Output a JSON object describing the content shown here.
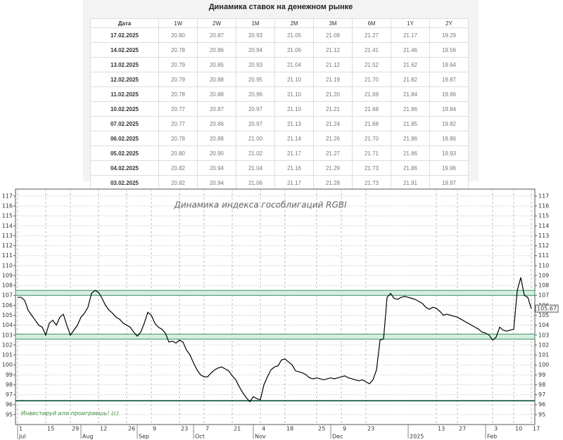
{
  "table": {
    "title": "Динамика ставок на денежном рынке",
    "header": [
      "Дата",
      "1W",
      "2W",
      "1M",
      "2M",
      "3M",
      "6M",
      "1Y",
      "2Y"
    ],
    "rows": [
      [
        "17.02.2025",
        "20.80",
        "20.87",
        "20.93",
        "21.05",
        "21.08",
        "21.27",
        "21.17",
        "19.29"
      ],
      [
        "14.02.2025",
        "20.78",
        "20.86",
        "20.94",
        "21.06",
        "21.12",
        "21.41",
        "21.46",
        "19.56"
      ],
      [
        "13.02.2025",
        "20.79",
        "20.85",
        "20.93",
        "21.04",
        "21.12",
        "21.52",
        "21.62",
        "19.64"
      ],
      [
        "12.02.2025",
        "20.79",
        "20.88",
        "20.95",
        "21.10",
        "21.19",
        "21.70",
        "21.82",
        "19.87"
      ],
      [
        "11.02.2025",
        "20.78",
        "20.88",
        "20.96",
        "21.10",
        "21.20",
        "21.69",
        "21.84",
        "19.86"
      ],
      [
        "10.02.2025",
        "20.77",
        "20.87",
        "20.97",
        "21.10",
        "21.21",
        "21.68",
        "21.86",
        "19.84"
      ],
      [
        "07.02.2025",
        "20.77",
        "20.86",
        "20.97",
        "21.13",
        "21.24",
        "21.68",
        "21.85",
        "19.82"
      ],
      [
        "06.02.2025",
        "20.78",
        "20.88",
        "21.00",
        "21.14",
        "21.26",
        "21.70",
        "21.86",
        "19.86"
      ],
      [
        "05.02.2025",
        "20.80",
        "20.90",
        "21.02",
        "21.17",
        "21.27",
        "21.71",
        "21.86",
        "19.93"
      ],
      [
        "04.02.2025",
        "20.82",
        "20.94",
        "21.04",
        "21.16",
        "21.29",
        "21.73",
        "21.86",
        "19.96"
      ],
      [
        "03.02.2025",
        "20.82",
        "20.94",
        "21.06",
        "21.17",
        "21.28",
        "21.73",
        "21.91",
        "19.97"
      ]
    ]
  },
  "chart_data": {
    "type": "line",
    "title": "Динамика индекса гособлигаций RGBI",
    "annotation": "Инвестируй или проиграешь! (c)",
    "categories": [
      "1",
      null,
      null,
      null,
      null,
      null,
      null,
      null,
      "15",
      null,
      null,
      null,
      null,
      null,
      null,
      "29",
      null,
      null,
      null,
      null,
      null,
      null,
      null,
      "12",
      null,
      null,
      null,
      null,
      null,
      null,
      null,
      "26",
      null,
      null,
      null,
      null,
      null,
      null,
      "9",
      null,
      null,
      null,
      null,
      null,
      null,
      null,
      "23",
      null,
      null,
      null,
      null,
      null,
      null,
      "7",
      null,
      null,
      null,
      null,
      null,
      null,
      null,
      "21",
      null,
      null,
      null,
      null,
      null,
      null,
      null,
      "4",
      null,
      null,
      null,
      null,
      null,
      null,
      "18",
      null,
      null,
      null,
      null,
      null,
      null,
      null,
      null,
      "25",
      null,
      null,
      null,
      null,
      null,
      null,
      "9",
      null,
      null,
      null,
      null,
      null,
      null,
      "23",
      null,
      null,
      null,
      null,
      null,
      null,
      null,
      null,
      null,
      null,
      null,
      null,
      null,
      null,
      null,
      null,
      null,
      null,
      null,
      "13",
      null,
      null,
      null,
      null,
      null,
      "27",
      null,
      null,
      null,
      null,
      null,
      null,
      null,
      null,
      null,
      "3",
      null,
      null,
      null,
      null,
      null,
      "10",
      null,
      null,
      null,
      null,
      "17"
    ],
    "category_groups": [
      "Jul",
      null,
      null,
      null,
      null,
      null,
      null,
      null,
      null,
      null,
      null,
      null,
      null,
      null,
      null,
      null,
      null,
      null,
      "Aug",
      null,
      null,
      null,
      null,
      null,
      null,
      null,
      null,
      null,
      null,
      null,
      null,
      null,
      null,
      null,
      "Sep",
      null,
      null,
      null,
      null,
      null,
      null,
      null,
      null,
      null,
      null,
      null,
      null,
      null,
      null,
      null,
      "Oct",
      null,
      null,
      null,
      null,
      null,
      null,
      null,
      null,
      null,
      null,
      null,
      null,
      null,
      null,
      null,
      null,
      "Nov",
      null,
      null,
      null,
      null,
      null,
      null,
      null,
      null,
      null,
      null,
      null,
      null,
      null,
      null,
      null,
      null,
      null,
      null,
      null,
      null,
      null,
      "Dec",
      null,
      null,
      null,
      null,
      null,
      null,
      null,
      null,
      null,
      null,
      null,
      null,
      null,
      null,
      null,
      null,
      null,
      null,
      null,
      null,
      null,
      "2025",
      null,
      null,
      null,
      null,
      null,
      null,
      null,
      null,
      null,
      null,
      null,
      null,
      null,
      null,
      null,
      null,
      null,
      null,
      null,
      null,
      null,
      "Feb",
      null,
      null,
      null,
      null,
      null,
      null,
      null,
      null,
      null,
      null,
      null,
      null,
      null
    ],
    "values": [
      106.8,
      106.8,
      106.5,
      105.5,
      105.0,
      104.5,
      104.0,
      103.8,
      103.0,
      104.2,
      104.5,
      104.0,
      104.8,
      105.1,
      104.0,
      103.0,
      103.5,
      104.0,
      104.8,
      105.2,
      105.8,
      107.2,
      107.5,
      107.3,
      106.7,
      106.0,
      105.5,
      105.2,
      104.8,
      104.6,
      104.2,
      104.0,
      103.8,
      103.3,
      102.9,
      103.3,
      104.2,
      105.3,
      105.0,
      104.2,
      103.8,
      103.6,
      103.2,
      102.3,
      102.4,
      102.2,
      102.5,
      102.3,
      101.5,
      101.0,
      100.2,
      99.5,
      99.0,
      98.8,
      98.8,
      99.2,
      99.5,
      99.7,
      99.8,
      99.6,
      99.4,
      98.9,
      98.5,
      97.8,
      97.2,
      96.7,
      96.3,
      96.8,
      96.6,
      96.5,
      98.0,
      98.8,
      99.5,
      99.8,
      99.9,
      100.5,
      100.6,
      100.3,
      100.0,
      99.4,
      99.3,
      99.2,
      99.0,
      98.7,
      98.6,
      98.7,
      98.6,
      98.5,
      98.6,
      98.7,
      98.6,
      98.7,
      98.8,
      98.9,
      98.7,
      98.6,
      98.5,
      98.4,
      98.5,
      98.3,
      98.1,
      98.5,
      99.5,
      102.5,
      102.6,
      106.8,
      107.2,
      106.7,
      106.6,
      106.8,
      106.9,
      106.8,
      106.7,
      106.6,
      106.4,
      106.2,
      105.8,
      105.6,
      105.8,
      105.7,
      105.4,
      105.0,
      105.1,
      105.0,
      104.9,
      104.8,
      104.6,
      104.4,
      104.2,
      104.0,
      103.8,
      103.6,
      103.3,
      103.2,
      103.0,
      102.5,
      102.8,
      103.8,
      103.5,
      103.4,
      103.5,
      103.6,
      107.5,
      108.8,
      107.0,
      106.8,
      105.67
    ],
    "color": "#000000",
    "ylim": [
      94,
      117.7
    ],
    "yticks": [
      95,
      96,
      97,
      98,
      99,
      100,
      101,
      102,
      103,
      104,
      105,
      106,
      107,
      108,
      109,
      110,
      111,
      112,
      113,
      114,
      115,
      116,
      117
    ],
    "grid": true,
    "bands": [
      [
        102.6,
        103.1
      ],
      [
        107.0,
        107.5
      ]
    ],
    "reference_line": 96.4
  }
}
